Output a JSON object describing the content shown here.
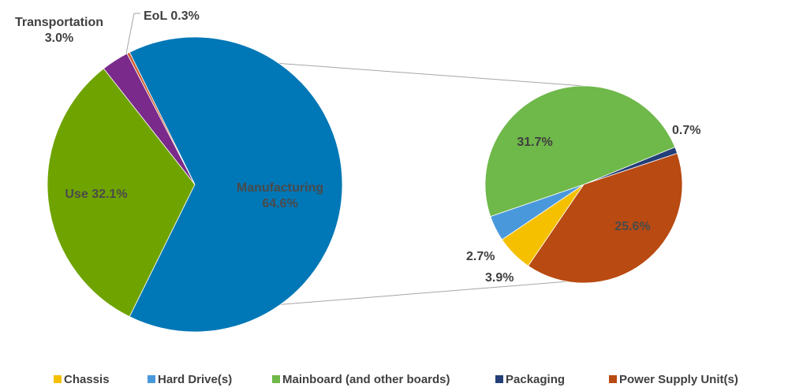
{
  "chart_data": [
    {
      "type": "pie",
      "categories": [
        "Manufacturing",
        "Use",
        "Transportation",
        "EoL"
      ],
      "values": [
        64.6,
        32.1,
        3.0,
        0.3
      ],
      "labels": [
        "Manufacturing\n64.6%",
        "Use 32.1%",
        "Transportation\n3.0%",
        "EoL 0.3%"
      ],
      "colors": [
        "#0077b6",
        "#6fa300",
        "#7a2a8a",
        "#d05a2a"
      ],
      "title": "",
      "exploded_category": "Manufacturing"
    },
    {
      "type": "pie",
      "categories": [
        "Chassis",
        "Hard Drive(s)",
        "Mainboard (and other boards)",
        "Packaging",
        "Power Supply Unit(s)"
      ],
      "values": [
        3.9,
        2.7,
        31.7,
        0.7,
        25.6
      ],
      "labels": [
        "3.9%",
        "2.7%",
        "31.7%",
        "0.7%",
        "25.6%"
      ],
      "colors": [
        "#f5c000",
        "#4a98dc",
        "#6fb84a",
        "#243f78",
        "#b84a12"
      ],
      "title": "",
      "legend_position": "bottom"
    }
  ],
  "legend": {
    "items": [
      "Chassis",
      "Hard Drive(s)",
      "Mainboard (and other boards)",
      "Packaging",
      "Power Supply Unit(s)"
    ]
  }
}
